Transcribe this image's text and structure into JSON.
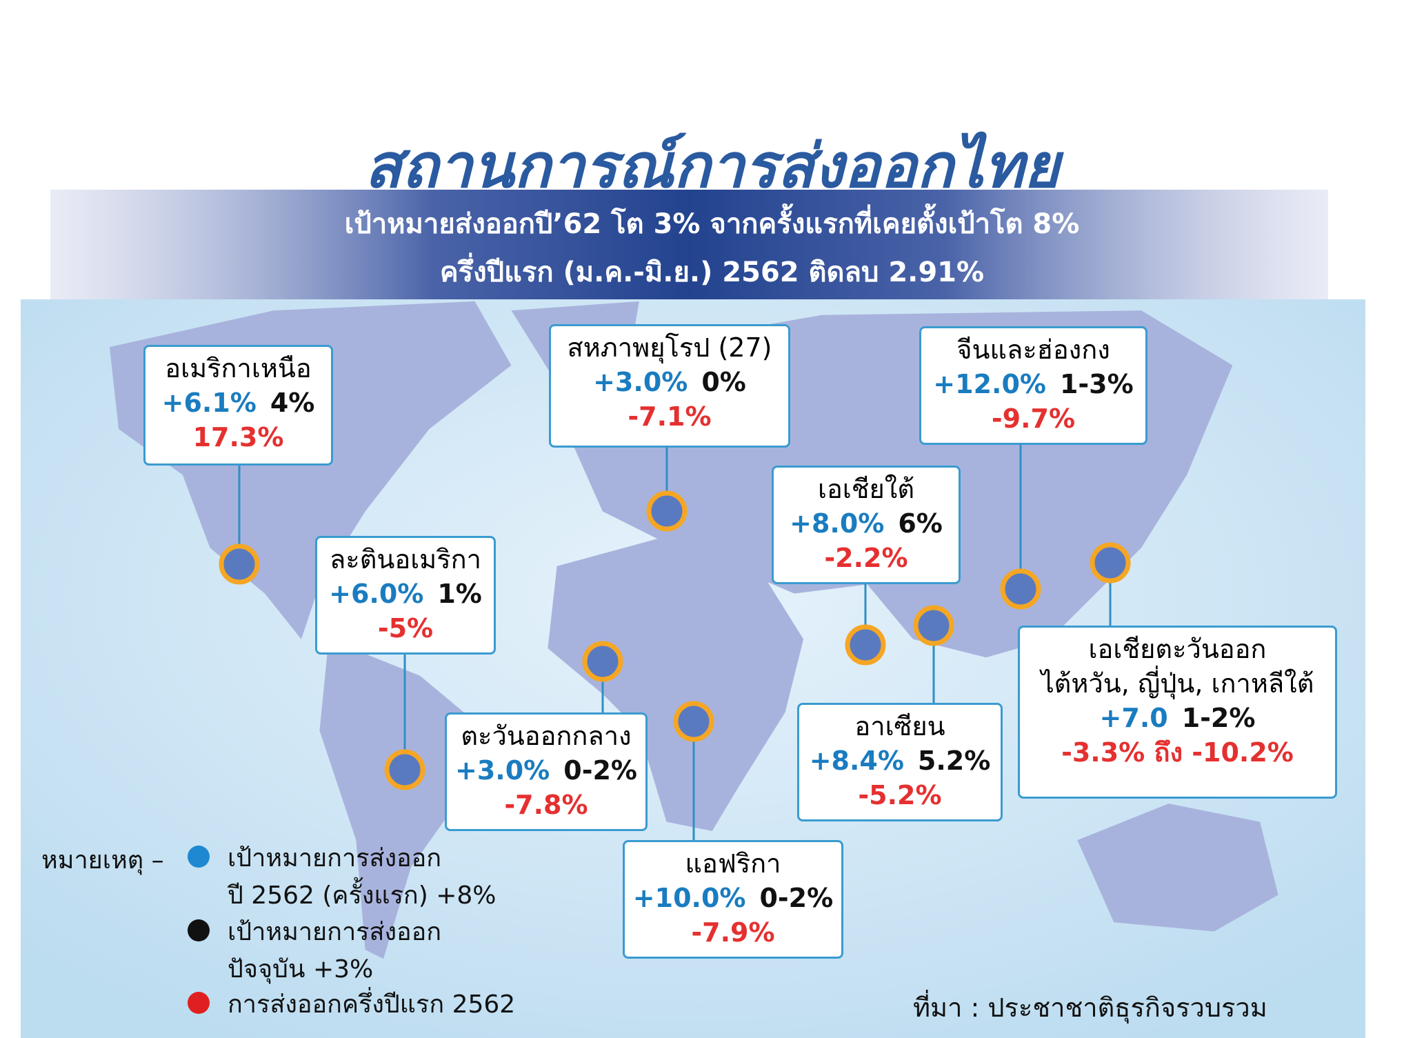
{
  "title": "สถานการณ์การส่งออกไทย",
  "subtitle": [
    "เป้าหมายส่งออกปี’62 โต 3% จากครั้งแรกที่เคยตั้งเป้าโต 8%",
    "ครึ่งปีแรก (ม.ค.-มิ.ย.) 2562 ติดลบ 2.91%"
  ],
  "regions": [
    {
      "name": "อเมริกาเหนือ",
      "target_initial": "+6.1%",
      "target_current": "4%",
      "first_half": "17.3%"
    },
    {
      "name": "สหภาพยุโรป (27)",
      "target_initial": "+3.0%",
      "target_current": "0%",
      "first_half": "-7.1%"
    },
    {
      "name": "จีนและฮ่องกง",
      "target_initial": "+12.0%",
      "target_current": "1-3%",
      "first_half": "-9.7%"
    },
    {
      "name": "เอเชียใต้",
      "target_initial": "+8.0%",
      "target_current": "6%",
      "first_half": "-2.2%"
    },
    {
      "name": "ละตินอเมริกา",
      "target_initial": "+6.0%",
      "target_current": "1%",
      "first_half": "-5%"
    },
    {
      "name": "ตะวันออกกลาง",
      "target_initial": "+3.0%",
      "target_current": "0-2%",
      "first_half": "-7.8%"
    },
    {
      "name": "แอฟริกา",
      "target_initial": "+10.0%",
      "target_current": "0-2%",
      "first_half": "-7.9%"
    },
    {
      "name": "อาเซียน",
      "target_initial": "+8.4%",
      "target_current": "5.2%",
      "first_half": "-5.2%"
    },
    {
      "name": "เอเชียตะวันออก",
      "countries": "ไต้หวัน, ญี่ปุ่น, เกาหลีใต้",
      "target_initial": "+7.0",
      "target_current": "1-2%",
      "first_half": "-3.3% ถึง -10.2%"
    }
  ],
  "legend": {
    "label": "หมายเหตุ –",
    "items": [
      "เป้าหมายการส่งออก\nปี 2562 (ครั้งแรก) +8%",
      "เป้าหมายการส่งออก\nปัจจุบัน +3%",
      "การส่งออกครึ่งปีแรก 2562"
    ]
  },
  "source": "ที่มา : ประชาชาติธุรกิจรวบรวม"
}
